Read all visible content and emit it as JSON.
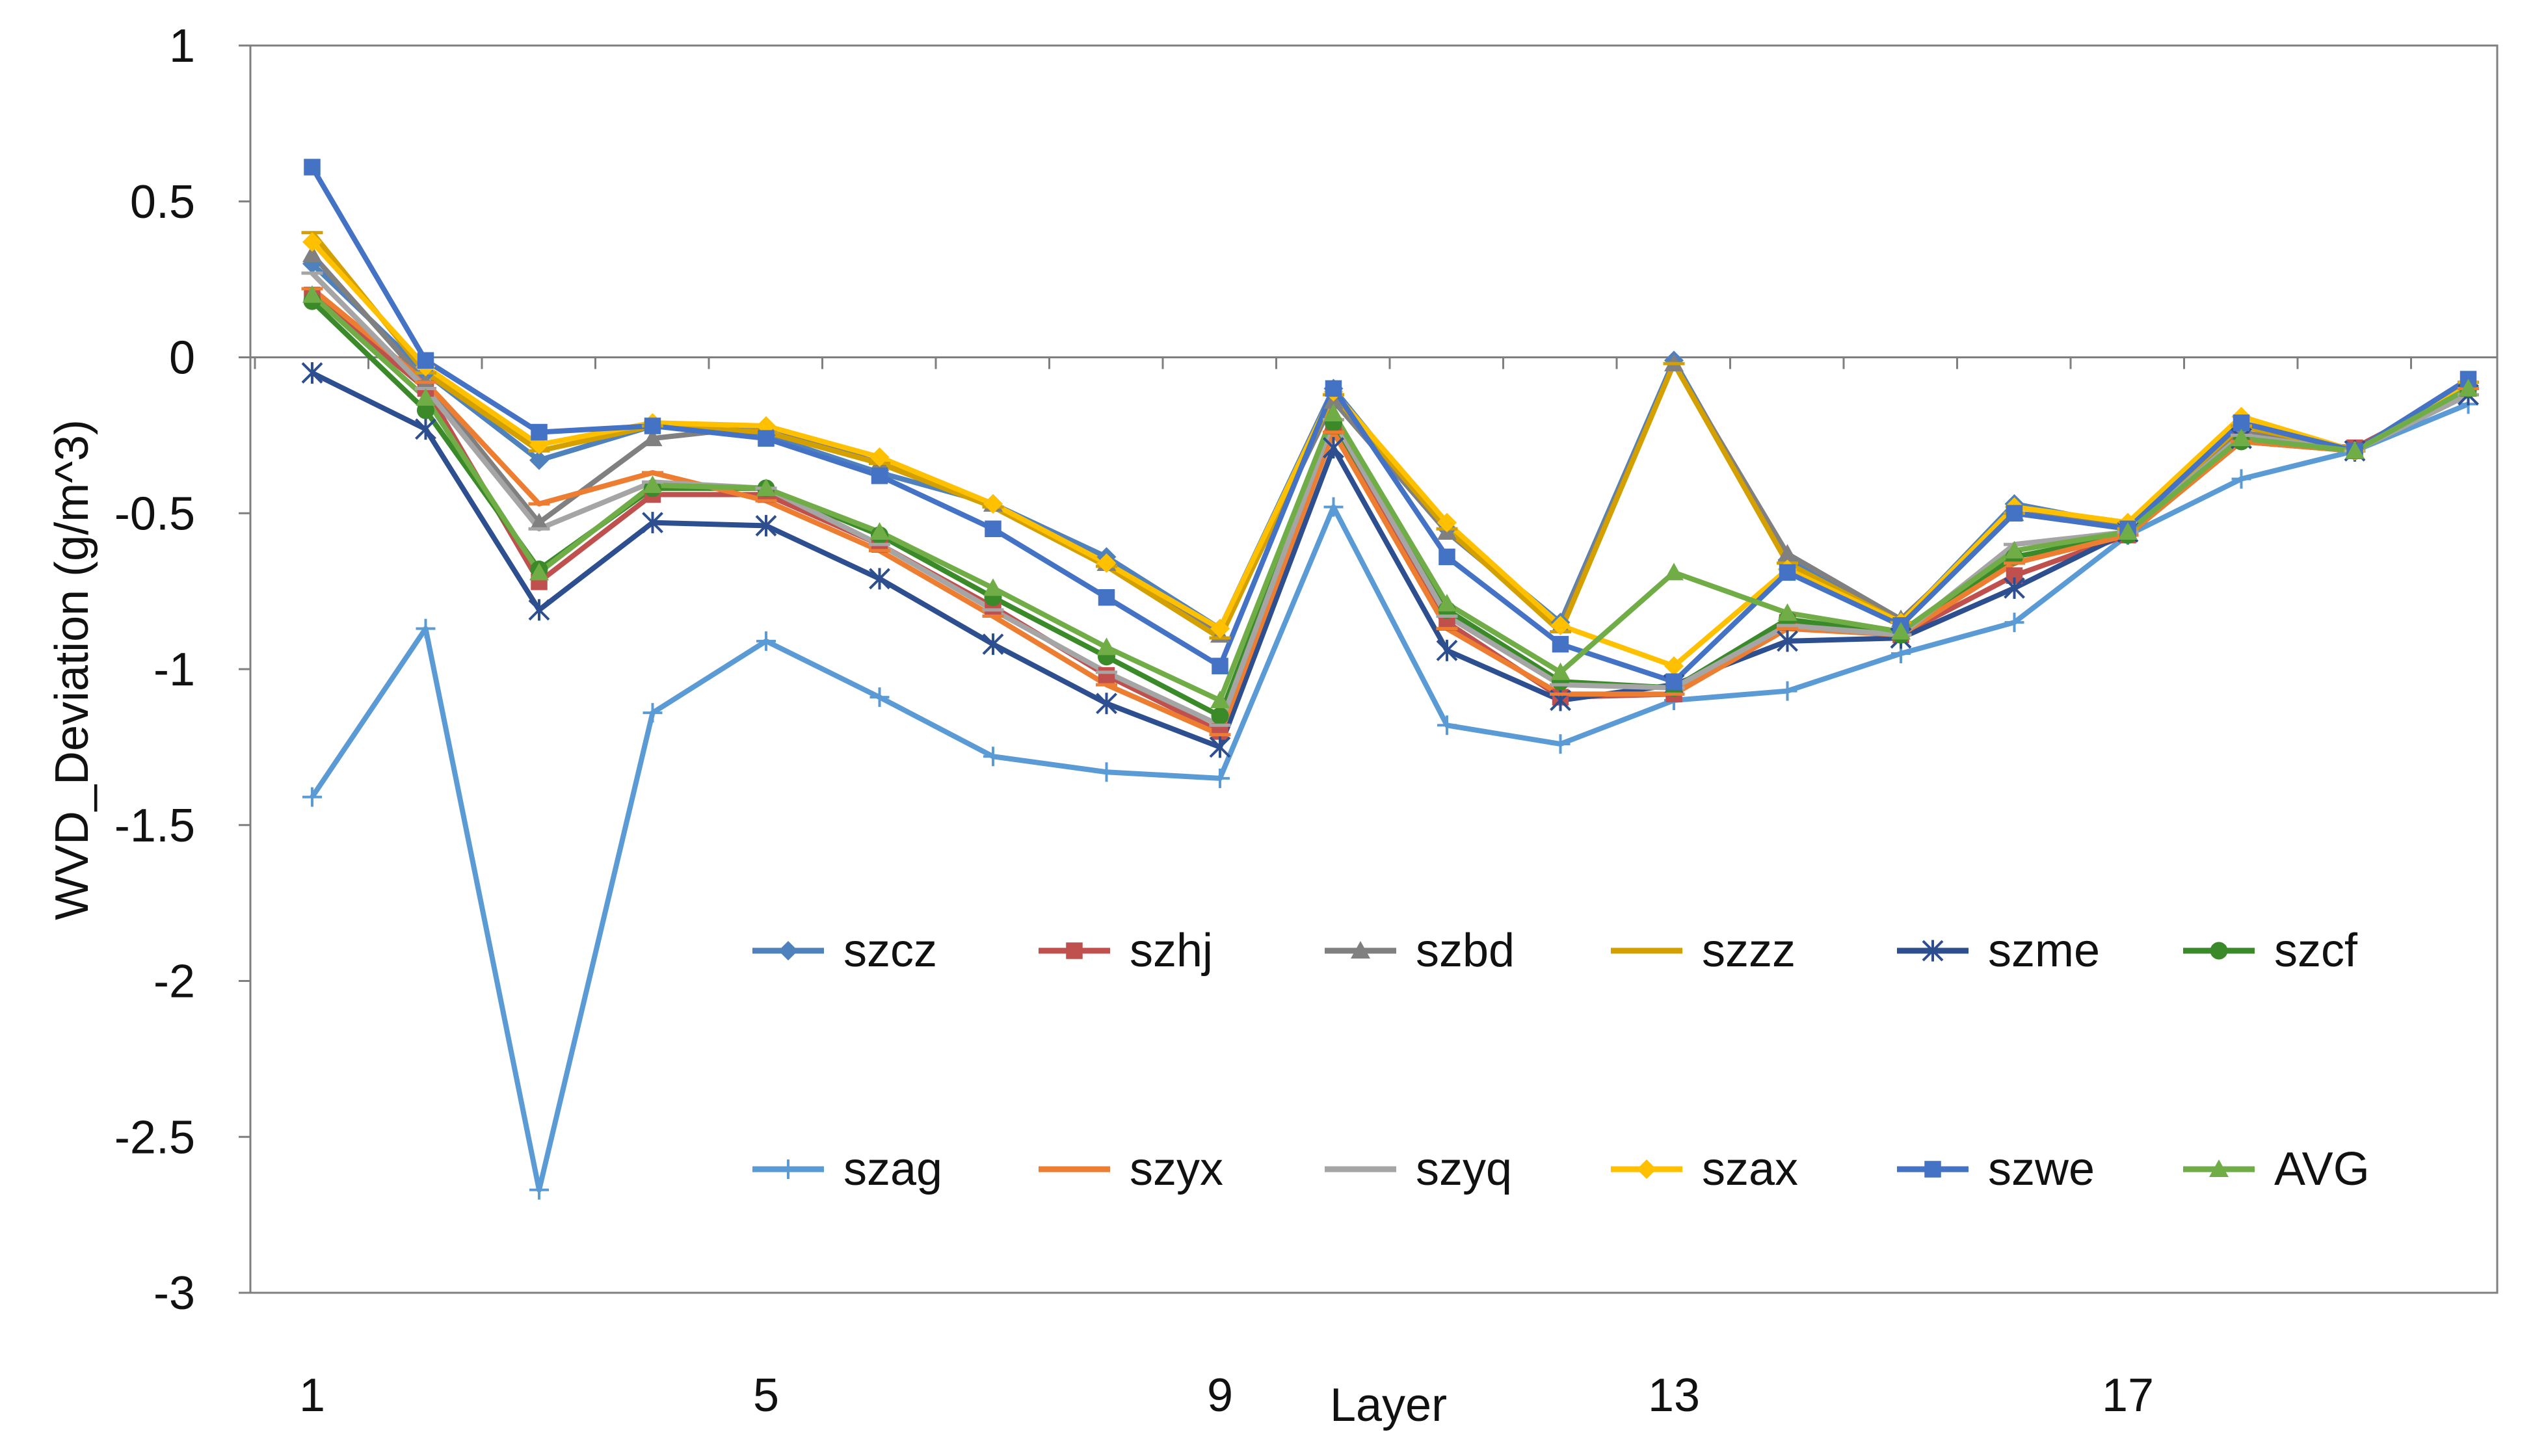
{
  "chart_data": {
    "type": "line",
    "title": "",
    "xlabel": "Layer",
    "ylabel": "WVD_Deviation (g/m^3)",
    "ylim": [
      -3,
      1
    ],
    "yticks": [
      1,
      0.5,
      0,
      -0.5,
      -1,
      -1.5,
      -2,
      -2.5,
      -3
    ],
    "ytick_labels": [
      "1",
      "0.5",
      "0",
      "-0.5",
      "-1",
      "-1.5",
      "-2",
      "-2.5",
      "-3"
    ],
    "x": [
      1,
      2,
      3,
      4,
      5,
      6,
      7,
      8,
      9,
      10,
      11,
      12,
      13,
      14,
      15,
      16,
      17,
      18,
      19,
      20
    ],
    "xtick_labels": [
      "1",
      "5",
      "9",
      "13",
      "17"
    ],
    "xtick_positions": [
      1,
      5,
      9,
      13,
      17
    ],
    "legend_position": "inside-bottom",
    "series": [
      {
        "name": "szcz",
        "color": "#4f81bd",
        "marker": "diamond",
        "values": [
          0.3,
          -0.05,
          -0.33,
          -0.22,
          -0.25,
          -0.37,
          -0.47,
          -0.64,
          -0.87,
          -0.1,
          -0.55,
          -0.85,
          -0.01,
          -0.65,
          -0.85,
          -0.47,
          -0.54,
          -0.22,
          -0.3,
          -0.1
        ]
      },
      {
        "name": "szhj",
        "color": "#c0504d",
        "marker": "square",
        "values": [
          0.2,
          -0.1,
          -0.72,
          -0.44,
          -0.44,
          -0.6,
          -0.8,
          -1.02,
          -1.2,
          -0.22,
          -0.85,
          -1.09,
          -1.08,
          -0.85,
          -0.89,
          -0.7,
          -0.57,
          -0.26,
          -0.29,
          -0.1
        ]
      },
      {
        "name": "szbd",
        "color": "#808080",
        "marker": "triangle",
        "values": [
          0.33,
          -0.08,
          -0.53,
          -0.26,
          -0.22,
          -0.34,
          -0.47,
          -0.66,
          -0.89,
          -0.14,
          -0.56,
          -0.86,
          -0.02,
          -0.63,
          -0.84,
          -0.5,
          -0.53,
          -0.24,
          -0.3,
          -0.1
        ]
      },
      {
        "name": "szzz",
        "color": "#d4a000",
        "marker": "dash",
        "values": [
          0.4,
          -0.05,
          -0.3,
          -0.22,
          -0.24,
          -0.34,
          -0.48,
          -0.67,
          -0.9,
          -0.12,
          -0.55,
          -0.88,
          -0.02,
          -0.66,
          -0.85,
          -0.5,
          -0.55,
          -0.22,
          -0.3,
          -0.08
        ]
      },
      {
        "name": "szme",
        "color": "#2e4f8f",
        "marker": "star",
        "values": [
          -0.05,
          -0.23,
          -0.81,
          -0.53,
          -0.54,
          -0.71,
          -0.92,
          -1.11,
          -1.25,
          -0.29,
          -0.94,
          -1.1,
          -1.05,
          -0.91,
          -0.9,
          -0.74,
          -0.56,
          -0.26,
          -0.3,
          -0.12
        ]
      },
      {
        "name": "szcf",
        "color": "#3a8a2a",
        "marker": "circle",
        "values": [
          0.18,
          -0.17,
          -0.68,
          -0.42,
          -0.42,
          -0.57,
          -0.77,
          -0.96,
          -1.15,
          -0.21,
          -0.81,
          -1.04,
          -1.06,
          -0.84,
          -0.89,
          -0.64,
          -0.57,
          -0.27,
          -0.3,
          -0.1
        ]
      },
      {
        "name": "szag",
        "color": "#5b9bd5",
        "marker": "plus",
        "values": [
          -1.41,
          -0.87,
          -2.67,
          -1.14,
          -0.91,
          -1.09,
          -1.28,
          -1.33,
          -1.35,
          -0.48,
          -1.18,
          -1.24,
          -1.1,
          -1.07,
          -0.95,
          -0.85,
          -0.57,
          -0.39,
          -0.3,
          -0.15
        ]
      },
      {
        "name": "szyx",
        "color": "#ed7d31",
        "marker": "dash",
        "values": [
          0.22,
          -0.08,
          -0.47,
          -0.37,
          -0.46,
          -0.62,
          -0.83,
          -1.05,
          -1.21,
          -0.24,
          -0.87,
          -1.08,
          -1.08,
          -0.87,
          -0.89,
          -0.66,
          -0.57,
          -0.27,
          -0.3,
          -0.1
        ]
      },
      {
        "name": "szyq",
        "color": "#a5a5a5",
        "marker": "dash",
        "values": [
          0.27,
          -0.1,
          -0.55,
          -0.4,
          -0.42,
          -0.6,
          -0.81,
          -1.01,
          -1.18,
          -0.2,
          -0.83,
          -1.05,
          -1.06,
          -0.86,
          -0.89,
          -0.6,
          -0.56,
          -0.25,
          -0.3,
          -0.12
        ]
      },
      {
        "name": "szax",
        "color": "#ffc000",
        "marker": "diamond",
        "values": [
          0.37,
          -0.03,
          -0.28,
          -0.21,
          -0.22,
          -0.32,
          -0.47,
          -0.66,
          -0.87,
          -0.11,
          -0.53,
          -0.86,
          -0.99,
          -0.68,
          -0.85,
          -0.48,
          -0.53,
          -0.19,
          -0.3,
          -0.08
        ]
      },
      {
        "name": "szwe",
        "color": "#4472c4",
        "marker": "square",
        "values": [
          0.61,
          -0.01,
          -0.24,
          -0.22,
          -0.26,
          -0.38,
          -0.55,
          -0.77,
          -0.99,
          -0.1,
          -0.64,
          -0.92,
          -1.04,
          -0.69,
          -0.86,
          -0.5,
          -0.55,
          -0.21,
          -0.3,
          -0.07
        ]
      },
      {
        "name": "AVG",
        "color": "#70ad47",
        "marker": "triangle",
        "values": [
          0.2,
          -0.13,
          -0.69,
          -0.41,
          -0.42,
          -0.56,
          -0.74,
          -0.93,
          -1.1,
          -0.18,
          -0.79,
          -1.01,
          -0.69,
          -0.82,
          -0.88,
          -0.62,
          -0.56,
          -0.26,
          -0.3,
          -0.1
        ]
      }
    ]
  }
}
